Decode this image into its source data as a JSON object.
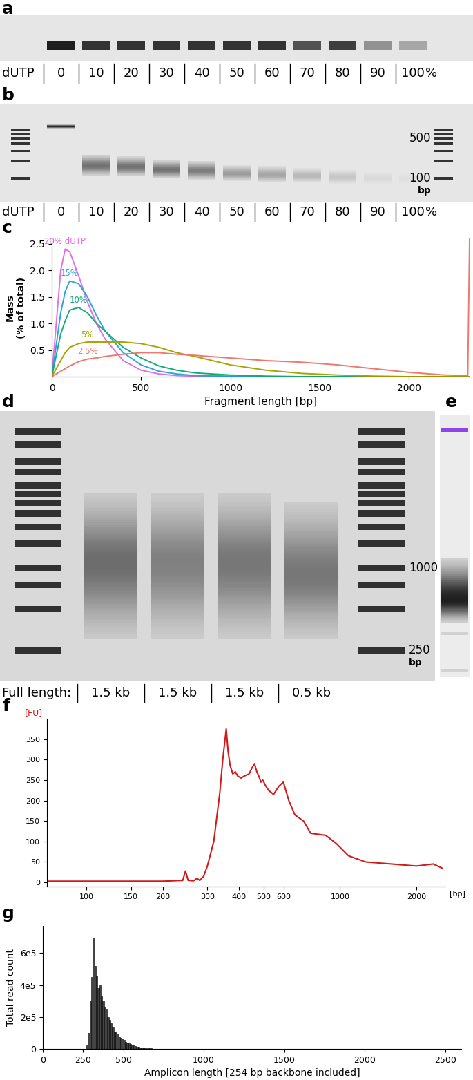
{
  "chart_data": [
    {
      "type": "gel",
      "title": "a",
      "row_label": "dUTP",
      "unit": "%",
      "categories": [
        "0",
        "10",
        "20",
        "30",
        "40",
        "50",
        "60",
        "70",
        "80",
        "90",
        "100"
      ],
      "values": [
        0.95,
        0.85,
        0.85,
        0.85,
        0.85,
        0.85,
        0.85,
        0.7,
        0.8,
        0.4,
        0.3
      ]
    },
    {
      "type": "gel",
      "title": "b",
      "row_label": "dUTP",
      "unit": "%",
      "categories": [
        "0",
        "10",
        "20",
        "30",
        "40",
        "50",
        "60",
        "70",
        "80",
        "90",
        "100"
      ],
      "log": "y",
      "ylim": [
        39,
        2000
      ],
      "yticks": [
        500,
        100
      ],
      "ylabel": "bp",
      "ladder": [
        100,
        200,
        300,
        400,
        500,
        600,
        700
      ],
      "lanes": [
        {
          "center": 800,
          "low": 740,
          "high": 870,
          "intensity": 0.95
        },
        {
          "center": 165,
          "low": 110,
          "high": 260,
          "intensity": 0.55
        },
        {
          "center": 160,
          "low": 108,
          "high": 240,
          "intensity": 0.55
        },
        {
          "center": 140,
          "low": 100,
          "high": 210,
          "intensity": 0.55
        },
        {
          "center": 135,
          "low": 95,
          "high": 200,
          "intensity": 0.5
        },
        {
          "center": 120,
          "low": 90,
          "high": 170,
          "intensity": 0.35
        },
        {
          "center": 115,
          "low": 85,
          "high": 165,
          "intensity": 0.3
        },
        {
          "center": 110,
          "low": 85,
          "high": 150,
          "intensity": 0.22
        },
        {
          "center": 105,
          "low": 80,
          "high": 140,
          "intensity": 0.15
        },
        {
          "center": 100,
          "low": 80,
          "high": 130,
          "intensity": 0.06
        },
        {
          "center": 100,
          "low": 80,
          "high": 120,
          "intensity": 0.03
        }
      ]
    },
    {
      "type": "line",
      "title": "c",
      "xlabel": "Fragment length [bp]",
      "ylabel": "Mass\n(% of total)",
      "x": [
        0,
        25,
        50,
        75,
        100,
        150,
        200,
        250,
        300,
        400,
        500,
        600,
        700,
        800,
        1000,
        1200,
        1400,
        1600,
        1800,
        2000,
        2200,
        2330,
        2340
      ],
      "series": [
        {
          "name": "20% dUTP",
          "color": "#e26fe6",
          "values": [
            0,
            1.0,
            2.0,
            2.4,
            2.35,
            1.9,
            1.4,
            1.0,
            0.7,
            0.3,
            0.12,
            0.05,
            0.02,
            0.01,
            0,
            0,
            0,
            0,
            0,
            0,
            0,
            0,
            0
          ]
        },
        {
          "name": "15%",
          "color": "#2aa4dd",
          "values": [
            0,
            0.6,
            1.2,
            1.6,
            1.8,
            1.75,
            1.5,
            1.15,
            0.85,
            0.45,
            0.22,
            0.1,
            0.05,
            0.02,
            0.01,
            0,
            0,
            0,
            0,
            0,
            0,
            0,
            0
          ]
        },
        {
          "name": "10%",
          "color": "#1aaa7a",
          "values": [
            0,
            0.4,
            0.8,
            1.05,
            1.25,
            1.3,
            1.2,
            1.0,
            0.85,
            0.55,
            0.35,
            0.2,
            0.12,
            0.07,
            0.03,
            0.01,
            0,
            0,
            0,
            0,
            0,
            0,
            0
          ]
        },
        {
          "name": "5%",
          "color": "#a8a400",
          "values": [
            0,
            0.15,
            0.3,
            0.45,
            0.55,
            0.62,
            0.65,
            0.65,
            0.65,
            0.65,
            0.62,
            0.55,
            0.45,
            0.38,
            0.22,
            0.12,
            0.06,
            0.03,
            0.01,
            0,
            0,
            0,
            0
          ]
        },
        {
          "name": "2.5%",
          "color": "#f0776d",
          "values": [
            0,
            0.05,
            0.1,
            0.15,
            0.2,
            0.28,
            0.33,
            0.35,
            0.38,
            0.42,
            0.45,
            0.45,
            0.42,
            0.4,
            0.35,
            0.3,
            0.27,
            0.22,
            0.15,
            0.08,
            0.03,
            0.02,
            2.6
          ]
        }
      ],
      "xlim": [
        0,
        2340
      ],
      "ylim": [
        0,
        2.6
      ],
      "xticks": [
        0,
        500,
        1000,
        1500,
        2000
      ],
      "yticks": [
        0.5,
        {
          "value": 1,
          "label": "1.0"
        },
        1.5,
        {
          "value": 2,
          "label": "2.0"
        },
        2.5
      ]
    },
    {
      "type": "gel",
      "title": "d",
      "row_label": "Full length:",
      "categories": [
        "1.5 kb",
        "1.5 kb",
        "1.5 kb",
        "0.5 kb"
      ],
      "log": "y",
      "ylim": [
        150,
        14000
      ],
      "yticks": [
        1000,
        250
      ],
      "ylabel": "bp",
      "ladder": [
        250,
        500,
        750,
        1000,
        1500,
        2000,
        2500,
        3000,
        3500,
        4000,
        5000,
        6000,
        8000,
        10000
      ],
      "lanes": [
        {
          "center": 1100,
          "low": 300,
          "high": 3500,
          "intensity": 0.55
        },
        {
          "center": 1100,
          "low": 300,
          "high": 3500,
          "intensity": 0.45
        },
        {
          "center": 1100,
          "low": 300,
          "high": 3500,
          "intensity": 0.5
        },
        {
          "center": 900,
          "low": 300,
          "high": 3000,
          "intensity": 0.5
        }
      ]
    },
    {
      "type": "gel",
      "title": "e",
      "log": "y",
      "ylim": [
        30,
        15000
      ],
      "bands": [
        {
          "size": 10380,
          "intensity": 1,
          "color": "#8e44e8"
        },
        {
          "size": 85,
          "intensity": 0.12
        },
        {
          "size": 35,
          "intensity": 0.12
        }
      ],
      "smear": {
        "center": 185,
        "low": 110,
        "high": 500,
        "intensity": 0.95
      }
    },
    {
      "type": "line",
      "title": "f",
      "ylabel": "[FU]",
      "xlabel": "[bp]",
      "log": "x",
      "color": "#d11a1a",
      "x": [
        70,
        150,
        200,
        240,
        246,
        252,
        265,
        273,
        280,
        290,
        300,
        318,
        336,
        345,
        356,
        362,
        369,
        378,
        387,
        395,
        407,
        420,
        438,
        450,
        460,
        470,
        478,
        488,
        496,
        510,
        523,
        547,
        574,
        598,
        628,
        664,
        718,
        766,
        878,
        967,
        1080,
        1260,
        1590,
        2000,
        2330,
        2520
      ],
      "values": [
        3,
        3,
        3,
        5,
        28,
        5,
        4,
        10,
        5,
        15,
        40,
        100,
        220,
        300,
        375,
        320,
        285,
        265,
        270,
        260,
        255,
        260,
        265,
        280,
        290,
        270,
        260,
        245,
        250,
        235,
        225,
        215,
        235,
        245,
        200,
        165,
        150,
        120,
        115,
        95,
        65,
        50,
        45,
        40,
        45,
        35
      ],
      "xlim": [
        70,
        2600
      ],
      "ylim": [
        -10,
        400
      ],
      "xticks": [
        100,
        150,
        200,
        300,
        400,
        500,
        600,
        1000,
        2000
      ],
      "yticks": [
        0,
        50,
        100,
        150,
        200,
        250,
        300,
        350
      ]
    },
    {
      "type": "histogram",
      "title": "g",
      "xlabel": "Amplicon length [254 bp backbone included]",
      "ylabel": "Total read count",
      "color": "#444444",
      "bins": [
        270,
        280,
        290,
        300,
        310,
        320,
        330,
        340,
        350,
        360,
        370,
        380,
        390,
        400,
        410,
        420,
        430,
        440,
        450,
        460,
        470,
        480,
        490,
        500,
        510,
        520,
        530,
        540,
        550,
        560,
        570,
        580,
        590,
        600,
        610,
        620,
        630,
        640,
        650,
        660,
        670,
        680,
        690,
        700
      ],
      "counts": [
        20000,
        100000,
        300000,
        450000,
        690000,
        520000,
        460000,
        380000,
        400000,
        330000,
        300000,
        260000,
        250000,
        200000,
        180000,
        160000,
        135000,
        110000,
        105000,
        90000,
        75000,
        70000,
        60000,
        55000,
        45000,
        40000,
        35000,
        30000,
        25000,
        20000,
        18000,
        15000,
        12000,
        10000,
        8000,
        7000,
        6000,
        5000,
        4000,
        3000,
        3000,
        2000,
        2000
      ],
      "xlim": [
        0,
        2600
      ],
      "ylim": [
        0,
        770000
      ],
      "xticks": [
        0,
        250,
        500,
        1000,
        1500,
        2000,
        2500
      ],
      "yticks": [
        0,
        {
          "value": 200000,
          "label": "2e5"
        },
        {
          "value": 400000,
          "label": "4e5"
        },
        {
          "value": 600000,
          "label": "6e5"
        }
      ]
    }
  ]
}
